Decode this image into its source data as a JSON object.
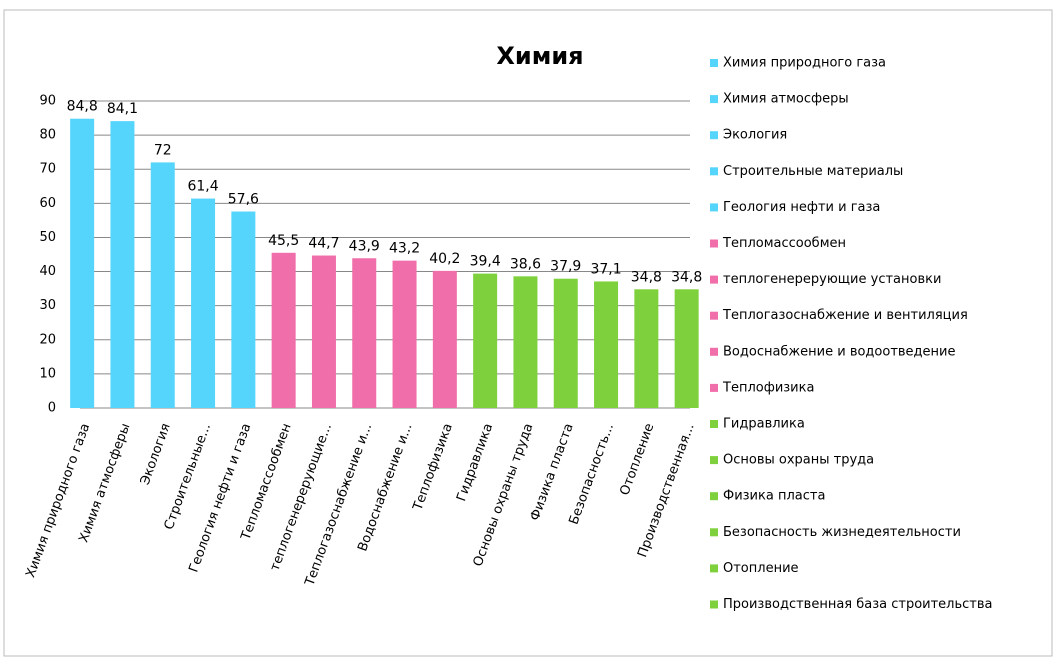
{
  "chart_data": {
    "type": "bar",
    "title": "Химия",
    "categories": [
      "Химия природного газа",
      "Химия атмосферы",
      "Экология",
      "Строительные...",
      "Геология нефти и газа",
      "Тепломассообмен",
      "теплогенерерующие...",
      "Теплогазоснабжение и...",
      "Водоснабжение и...",
      "Теплофизика",
      "Гидравлика",
      "Основы охраны труда",
      "Физика пласта",
      "Безопасность...",
      "Отопление",
      "Производственная..."
    ],
    "values": [
      84.8,
      84.1,
      72,
      61.4,
      57.6,
      45.5,
      44.7,
      43.9,
      43.2,
      40.2,
      39.4,
      38.6,
      37.9,
      37.1,
      34.8,
      34.8
    ],
    "value_labels": [
      "84,8",
      "84,1",
      "72",
      "61,4",
      "57,6",
      "45,5",
      "44,7",
      "43,9",
      "43,2",
      "40,2",
      "39,4",
      "38,6",
      "37,9",
      "37,1",
      "34,8",
      "34,8"
    ],
    "colors": [
      "#55d5fb",
      "#55d5fb",
      "#55d5fb",
      "#55d5fb",
      "#55d5fb",
      "#f06eaa",
      "#f06eaa",
      "#f06eaa",
      "#f06eaa",
      "#f06eaa",
      "#7ed13c",
      "#7ed13c",
      "#7ed13c",
      "#7ed13c",
      "#7ed13c",
      "#7ed13c"
    ],
    "legend": [
      "Химия природного газа",
      "Химия атмосферы",
      "Экология",
      "Строительные материалы",
      "Геология нефти и газа",
      "Тепломассообмен",
      "теплогенерерующие установки",
      "Теплогазоснабжение и вентиляция",
      "Водоснабжение и водоотведение",
      "Теплофизика",
      "Гидравлика",
      "Основы охраны труда",
      "Физика пласта",
      "Безопасность жизнедеятельности",
      "Отопление",
      "Производственная база строительства"
    ],
    "ylim": [
      0,
      90
    ],
    "yticks": [
      0,
      10,
      20,
      30,
      40,
      50,
      60,
      70,
      80,
      90
    ],
    "grid": true
  }
}
